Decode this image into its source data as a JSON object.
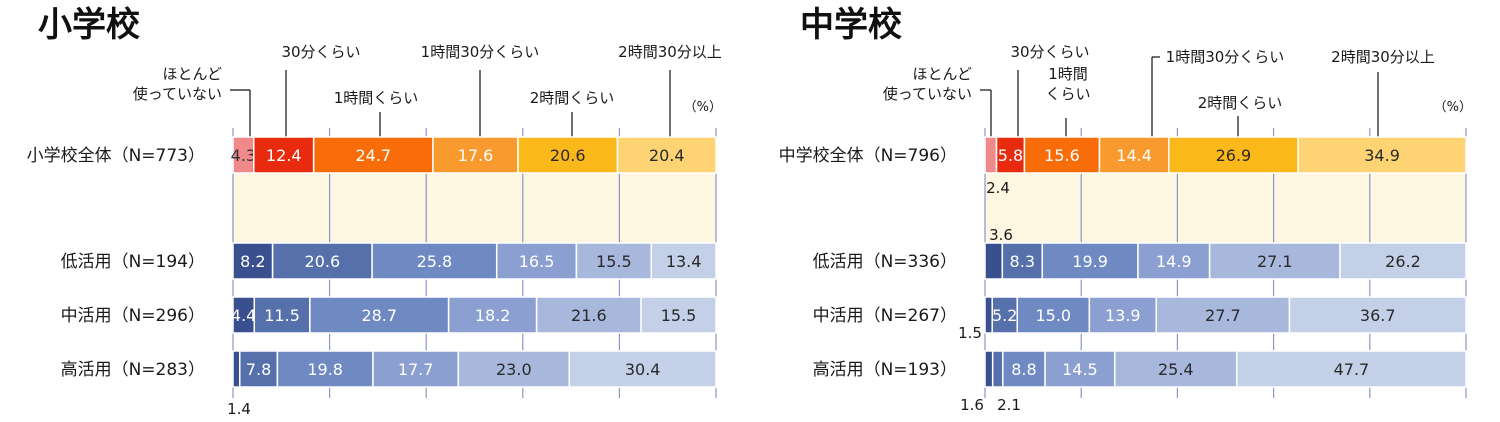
{
  "chart_data": [
    {
      "type": "bar",
      "stacked": true,
      "orientation": "horizontal",
      "title": "小学校",
      "unit": "（%）",
      "xlim": [
        0,
        100
      ],
      "grid": true,
      "categories": [
        "ほとんど使っていない",
        "30分くらい",
        "1時間くらい",
        "1時間30分くらい",
        "2時間くらい",
        "2時間30分以上"
      ],
      "category_labels": [
        {
          "lines": [
            "ほとんど",
            "使っていない"
          ]
        },
        {
          "lines": [
            "30分くらい"
          ]
        },
        {
          "lines": [
            "1時間くらい"
          ]
        },
        {
          "lines": [
            "1時間30分くらい"
          ]
        },
        {
          "lines": [
            "2時間くらい"
          ]
        },
        {
          "lines": [
            "2時間30分以上"
          ]
        }
      ],
      "rows": [
        {
          "name": "小学校全体（N=773）",
          "values": [
            4.3,
            12.4,
            24.7,
            17.6,
            20.6,
            20.4
          ],
          "palette": "warm"
        },
        {
          "name": "低活用（N=194）",
          "values": [
            8.2,
            20.6,
            25.8,
            16.5,
            15.5,
            13.4
          ],
          "palette": "cool"
        },
        {
          "name": "中活用（N=296）",
          "values": [
            4.4,
            11.5,
            28.7,
            18.2,
            21.6,
            15.5
          ],
          "palette": "cool"
        },
        {
          "name": "高活用（N=283）",
          "values": [
            1.4,
            7.8,
            19.8,
            17.7,
            23.0,
            30.4
          ],
          "palette": "cool"
        }
      ]
    },
    {
      "type": "bar",
      "stacked": true,
      "orientation": "horizontal",
      "title": "中学校",
      "unit": "（%）",
      "xlim": [
        0,
        100
      ],
      "grid": true,
      "categories": [
        "ほとんど使っていない",
        "30分くらい",
        "1時間くらい",
        "1時間30分くらい",
        "2時間くらい",
        "2時間30分以上"
      ],
      "category_labels": [
        {
          "lines": [
            "ほとんど",
            "使っていない"
          ]
        },
        {
          "lines": [
            "30分くらい"
          ]
        },
        {
          "lines": [
            "1時間",
            "くらい"
          ]
        },
        {
          "lines": [
            "1時間30分くらい"
          ]
        },
        {
          "lines": [
            "2時間くらい"
          ]
        },
        {
          "lines": [
            "2時間30分以上"
          ]
        }
      ],
      "rows": [
        {
          "name": "中学校全体（N=796）",
          "values": [
            2.4,
            5.8,
            15.6,
            14.4,
            26.9,
            34.9
          ],
          "palette": "warm"
        },
        {
          "name": "低活用（N=336）",
          "values": [
            3.6,
            8.3,
            19.9,
            14.9,
            27.1,
            26.2
          ],
          "palette": "cool"
        },
        {
          "name": "中活用（N=267）",
          "values": [
            1.5,
            5.2,
            15.0,
            13.9,
            27.7,
            36.7
          ],
          "palette": "cool"
        },
        {
          "name": "高活用（N=193）",
          "values": [
            1.6,
            2.1,
            8.8,
            14.5,
            25.4,
            47.7
          ],
          "palette": "cool"
        }
      ]
    }
  ],
  "colors": {
    "warm": [
      "#f08a8a",
      "#e82a0e",
      "#f86d0a",
      "#f99a2e",
      "#fbb81a",
      "#fdd374"
    ],
    "cool": [
      "#3a4f8e",
      "#5670ac",
      "#6f89c3",
      "#8b9fd0",
      "#a8b7dc",
      "#c4cfe8"
    ],
    "background_band": "#fdf6e0",
    "gridline": "#8a96c8"
  }
}
